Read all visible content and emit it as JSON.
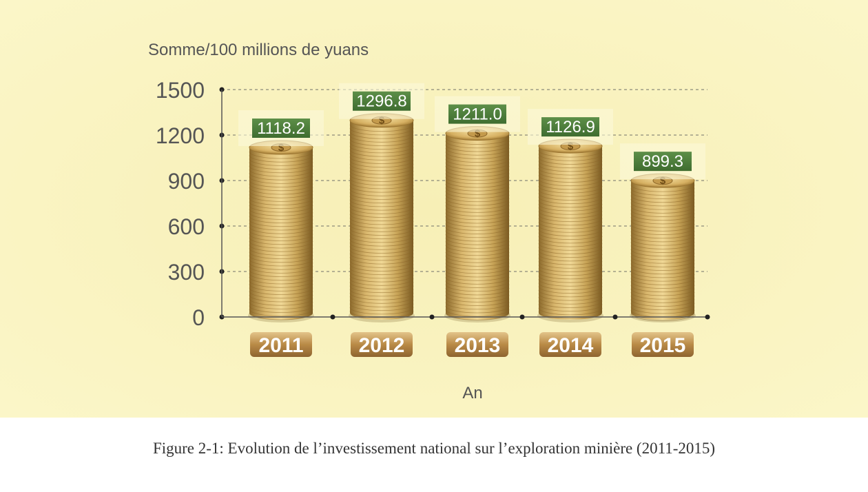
{
  "caption": "Figure 2-1: Evolution de l’investissement national sur l’exploration minière (2011-2015)",
  "colors": {
    "panel": "#faf4c0",
    "label_box": "#4e7f3c",
    "coin": "#c9a55a",
    "year_tag": "#b8894a",
    "axis_text": "#555555"
  },
  "chart_data": {
    "type": "bar",
    "ylabel": "Somme/100 millions de yuans",
    "xlabel": "An",
    "categories": [
      "2011",
      "2012",
      "2013",
      "2014",
      "2015"
    ],
    "values": [
      1118.2,
      1296.8,
      1211.0,
      1126.9,
      899.3
    ],
    "value_labels": [
      "1118.2",
      "1296.8",
      "1211.0",
      "1126.9",
      "899.3"
    ],
    "ylim": [
      0,
      1500
    ],
    "yticks": [
      0,
      300,
      600,
      900,
      1200,
      1500
    ],
    "grid": true
  }
}
